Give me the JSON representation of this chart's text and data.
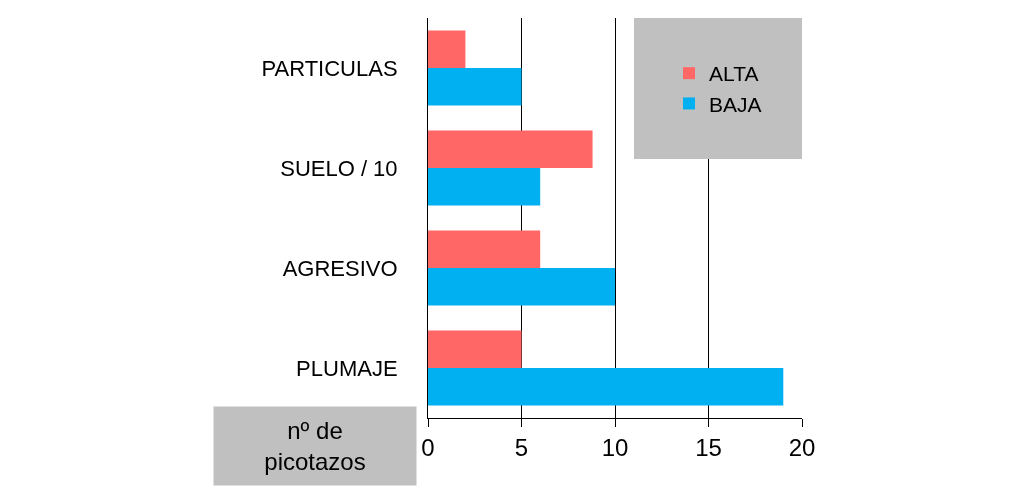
{
  "chart_data": {
    "type": "bar",
    "orientation": "horizontal",
    "xlabel": "nº de picotazos",
    "categories": [
      "PARTICULAS",
      "SUELO / 10",
      "AGRESIVO",
      "PLUMAJE"
    ],
    "series": [
      {
        "name": "ALTA",
        "color": "#ff6666",
        "values": [
          2,
          8.8,
          6,
          5
        ]
      },
      {
        "name": "BAJA",
        "color": "#00b0f0",
        "values": [
          5,
          6,
          10,
          19
        ]
      }
    ],
    "xlim": [
      0,
      20
    ],
    "xticks": [
      0,
      5,
      10,
      15,
      20
    ],
    "grid": "x",
    "legend": "top right"
  }
}
